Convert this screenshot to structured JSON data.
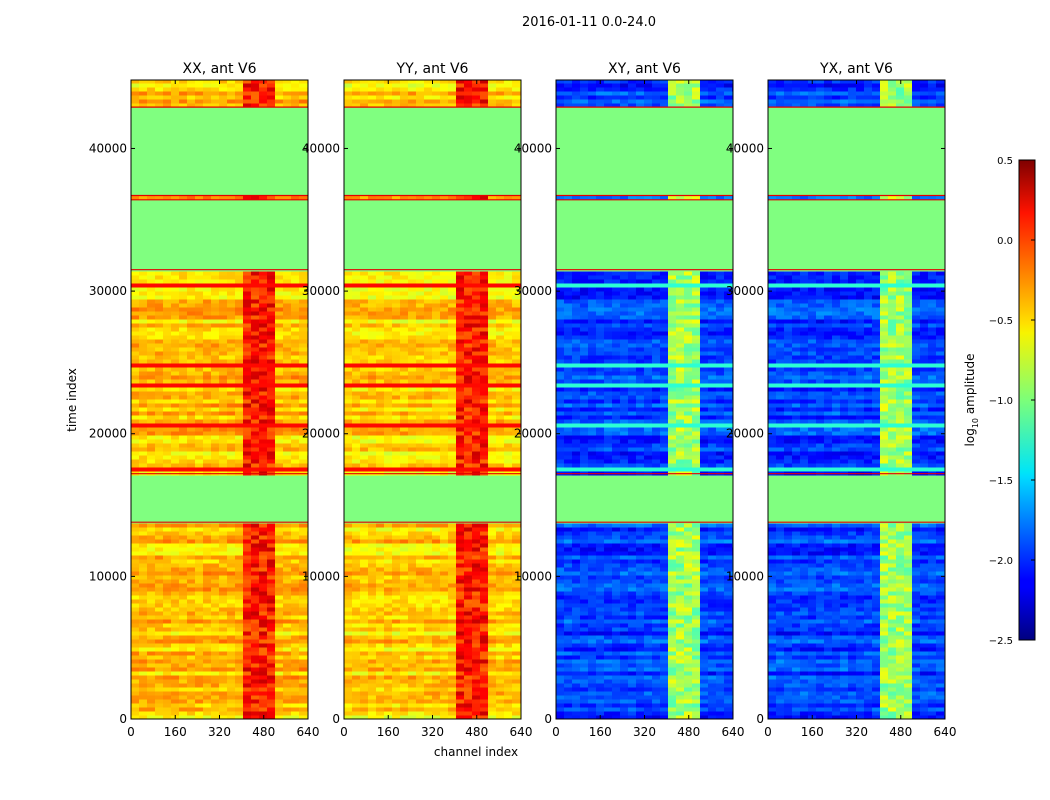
{
  "suptitle": "2016-01-11 0.0-24.0",
  "chart_data": {
    "type": "heatmap",
    "title": "2016-01-11 0.0-24.0",
    "xlabel": "channel index",
    "ylabel": "time index",
    "x_ticks": [
      "0",
      "160",
      "320",
      "480",
      "640"
    ],
    "y_ticks": [
      "0",
      "10000",
      "20000",
      "30000",
      "40000"
    ],
    "xlim": [
      0,
      640
    ],
    "ylim": [
      0,
      44800
    ],
    "colormap": "jet",
    "colorbar": {
      "label": "log",
      "label_sub": "10",
      "label_rest": " amplitude",
      "ticks": [
        "0.5",
        "0.0",
        "−0.5",
        "−1.0",
        "−1.5",
        "−2.0",
        "−2.5"
      ],
      "range": [
        -2.5,
        0.5
      ]
    },
    "panels": [
      {
        "title": "XX, ant V6",
        "base_level": -0.45,
        "flag_level": -1.0,
        "rfi_level": 0.05
      },
      {
        "title": "YY, ant V6",
        "base_level": -0.5,
        "flag_level": -1.0,
        "rfi_level": 0.05
      },
      {
        "title": "XY, ant V6",
        "base_level": -1.95,
        "flag_level": -1.0,
        "rfi_level": -0.9
      },
      {
        "title": "YX, ant V6",
        "base_level": -1.95,
        "flag_level": -1.0,
        "rfi_level": -0.9
      }
    ],
    "flagged_time_ranges": [
      [
        36700,
        42900
      ],
      [
        31500,
        36400
      ],
      [
        13800,
        17200
      ]
    ],
    "rfi_channel_ranges": [
      [
        400,
        520
      ]
    ]
  }
}
